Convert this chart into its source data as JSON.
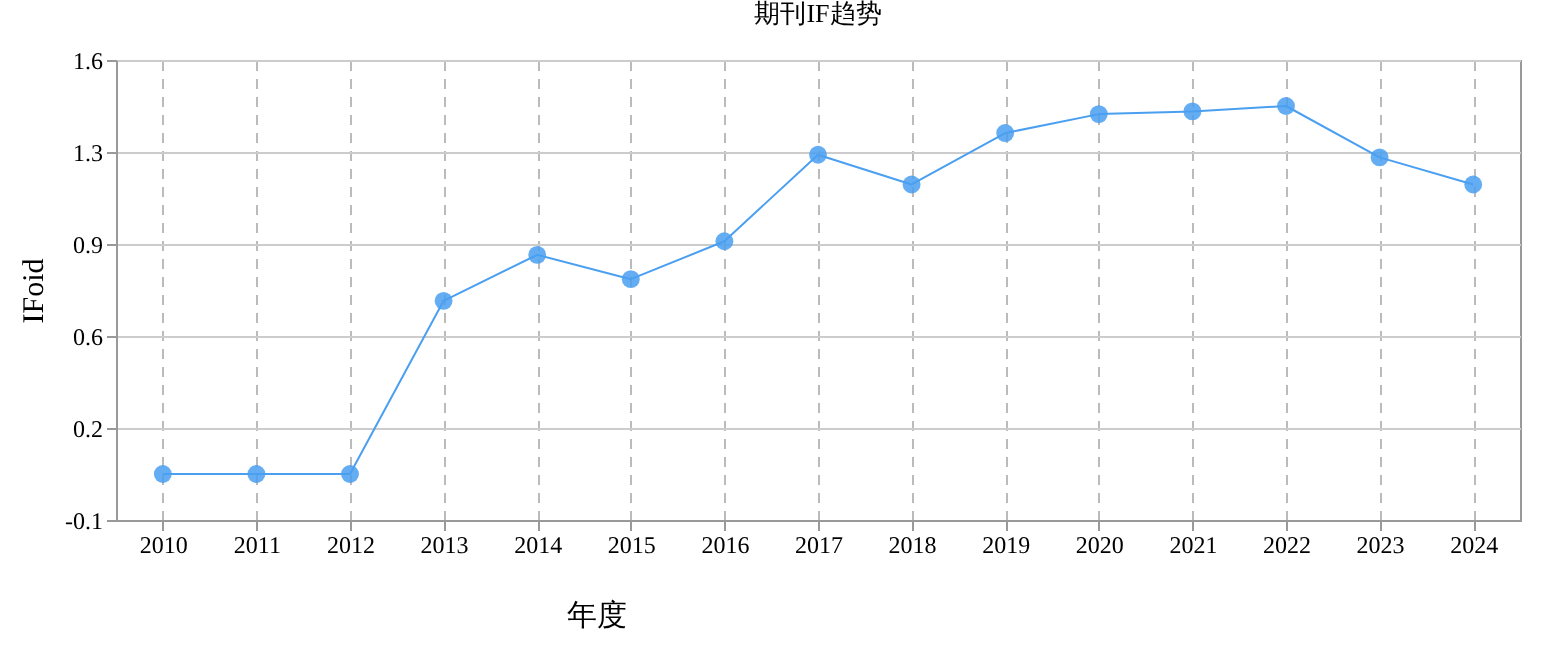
{
  "chart_data": {
    "type": "line",
    "title": "期刊IF趋势",
    "xlabel": "年度",
    "ylabel": "IFoid",
    "categories": [
      "2010",
      "2011",
      "2012",
      "2013",
      "2014",
      "2015",
      "2016",
      "2017",
      "2018",
      "2019",
      "2020",
      "2021",
      "2022",
      "2023",
      "2024"
    ],
    "series": [
      {
        "color": "#4a9ff0",
        "values": [
          0.07,
          0.07,
          0.07,
          0.71,
          0.88,
          0.79,
          0.93,
          1.25,
          1.14,
          1.33,
          1.4,
          1.41,
          1.43,
          1.24,
          1.14
        ]
      }
    ],
    "ylim": [
      -0.1,
      1.6
    ],
    "yticks": [
      -0.1,
      {
        "value": 0.24,
        "label": "0.2"
      },
      {
        "value": 0.58,
        "label": "0.6"
      },
      {
        "value": 0.92,
        "label": "0.9"
      },
      {
        "value": 1.26,
        "label": "1.3"
      },
      1.6
    ],
    "grid": true,
    "marker": "circle",
    "line_style": "solid"
  }
}
